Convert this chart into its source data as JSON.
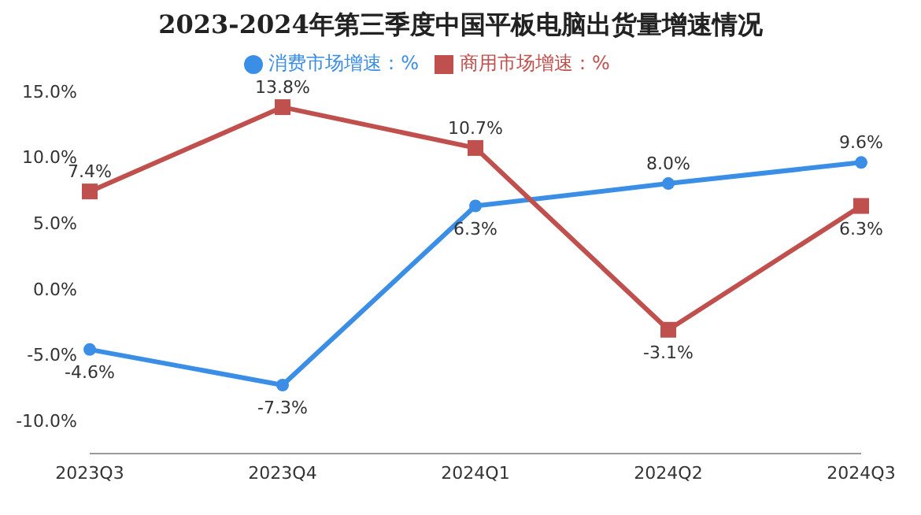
{
  "chart_data": {
    "type": "line",
    "title": "2023-2024年第三季度中国平板电脑出货量增速情况",
    "categories": [
      "2023Q3",
      "2023Q4",
      "2024Q1",
      "2024Q2",
      "2024Q3"
    ],
    "series": [
      {
        "name": "消费市场增速：%",
        "color": "#3a8ee6",
        "values": [
          -4.6,
          -7.3,
          6.3,
          8.0,
          9.6
        ],
        "value_labels": [
          "-4.6%",
          "-7.3%",
          "6.3%",
          "8.0%",
          "9.6%"
        ],
        "marker": "circle"
      },
      {
        "name": "商用市场增速：%",
        "color": "#c0504d",
        "values": [
          7.4,
          13.8,
          10.7,
          -3.1,
          6.3
        ],
        "value_labels": [
          "7.4%",
          "13.8%",
          "10.7%",
          "-3.1%",
          "6.3%"
        ],
        "marker": "square"
      }
    ],
    "ylim": [
      -12.5,
      15
    ],
    "yticks": [
      {
        "value": -10,
        "label": "-10.0%"
      },
      {
        "value": -5,
        "label": "-5.0%"
      },
      {
        "value": 0,
        "label": "0.0%"
      },
      {
        "value": 5,
        "label": "5.0%"
      },
      {
        "value": 10,
        "label": "10.0%"
      },
      {
        "value": 15,
        "label": "15.0%"
      }
    ],
    "grid": false,
    "legend": "top"
  }
}
